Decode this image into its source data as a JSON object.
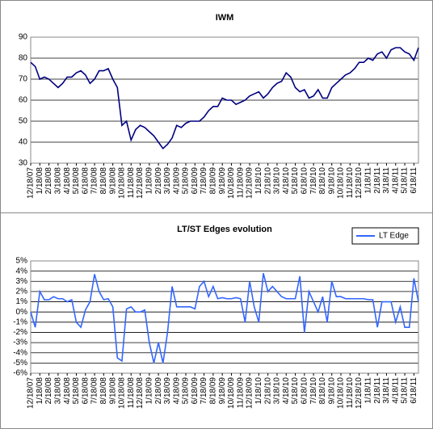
{
  "chart_data": [
    {
      "type": "line",
      "title": "IWM",
      "categories": [
        "12/18/07",
        null,
        "1/18/08",
        null,
        "2/18/08",
        null,
        "3/18/08",
        null,
        "4/18/08",
        null,
        "5/18/08",
        null,
        "6/18/08",
        null,
        "7/18/08",
        null,
        "8/18/08",
        null,
        "9/18/08",
        null,
        "10/18/08",
        null,
        "11/18/08",
        null,
        "12/18/08",
        null,
        "1/18/09",
        null,
        "2/18/09",
        null,
        "3/18/09",
        null,
        "4/18/09",
        null,
        "5/18/09",
        null,
        "6/18/09",
        null,
        "7/18/09",
        null,
        "8/18/09",
        null,
        "9/18/09",
        null,
        "10/18/09",
        null,
        "11/18/09",
        null,
        "12/18/09",
        null,
        "1/18/10",
        null,
        "2/18/10",
        null,
        "3/18/10",
        null,
        "4/18/10",
        null,
        "5/18/10",
        null,
        "6/18/10",
        null,
        "7/18/10",
        null,
        "8/18/10",
        null,
        "9/18/10",
        null,
        "10/18/10",
        null,
        "11/18/10",
        null,
        "12/18/10",
        null,
        "1/18/11",
        null,
        "2/18/11",
        null,
        "3/18/11",
        null,
        "4/18/11",
        null,
        "5/18/11",
        null,
        "6/18/11",
        null
      ],
      "values": [
        78,
        76,
        70,
        71,
        70,
        68,
        66,
        68,
        71,
        71,
        73,
        74,
        72,
        68,
        70,
        74,
        74,
        75,
        70,
        66,
        48,
        50,
        41,
        46,
        48,
        47,
        45,
        43,
        40,
        37,
        39,
        42,
        48,
        47,
        49,
        50,
        50,
        50,
        52,
        55,
        57,
        57,
        61,
        60,
        60,
        58,
        59,
        60,
        62,
        63,
        64,
        61,
        63,
        66,
        68,
        69,
        73,
        71,
        66,
        64,
        65,
        61,
        62,
        65,
        61,
        61,
        66,
        68,
        70,
        72,
        73,
        75,
        78,
        78,
        80,
        79,
        82,
        83,
        80,
        84,
        85,
        85,
        83,
        82,
        79,
        85
      ],
      "color": "#000080",
      "ylim": [
        30,
        90
      ],
      "yticks": [
        30,
        40,
        50,
        60,
        70,
        80,
        90
      ],
      "grid": true
    },
    {
      "type": "line",
      "title": "LT/ST Edges evolution",
      "categories": [
        "12/18/07",
        null,
        "1/18/08",
        null,
        "2/18/08",
        null,
        "3/18/08",
        null,
        "4/18/08",
        null,
        "5/18/08",
        null,
        "6/18/08",
        null,
        "7/18/08",
        null,
        "8/18/08",
        null,
        "9/18/08",
        null,
        "10/18/08",
        null,
        "11/18/08",
        null,
        "12/18/08",
        null,
        "1/18/09",
        null,
        "2/18/09",
        null,
        "3/18/09",
        null,
        "4/18/09",
        null,
        "5/18/09",
        null,
        "6/18/09",
        null,
        "7/18/09",
        null,
        "8/18/09",
        null,
        "9/18/09",
        null,
        "10/18/09",
        null,
        "11/18/09",
        null,
        "12/18/09",
        null,
        "1/18/10",
        null,
        "2/18/10",
        null,
        "3/18/10",
        null,
        "4/18/10",
        null,
        "5/18/10",
        null,
        "6/18/10",
        null,
        "7/18/10",
        null,
        "8/18/10",
        null,
        "9/18/10",
        null,
        "10/18/10",
        null,
        "11/18/10",
        null,
        "12/18/10",
        null,
        "1/18/11",
        null,
        "2/18/11",
        null,
        "3/18/11",
        null,
        "4/18/11",
        null,
        "5/18/11",
        null,
        "6/18/11",
        null
      ],
      "series": [
        {
          "name": "LT Edge",
          "color": "#3366ff",
          "values": [
            0,
            -1.5,
            2,
            1.2,
            1.2,
            1.5,
            1.3,
            1.3,
            1,
            1.2,
            -1,
            -1.5,
            0.2,
            1,
            3.7,
            2,
            1.2,
            1.3,
            0.5,
            -4.5,
            -4.8,
            0.3,
            0.5,
            0,
            0,
            0.2,
            -3,
            -5,
            -3,
            -5,
            -2,
            2.5,
            0.5,
            0.5,
            0.5,
            0.5,
            0.3,
            2.5,
            3,
            1.5,
            2.5,
            1.3,
            1.4,
            1.3,
            1.3,
            1.4,
            1.3,
            -1,
            3,
            0.5,
            -1,
            3.8,
            2,
            2.5,
            2,
            1.5,
            1.3,
            1.3,
            1.3,
            3.5,
            -2,
            2,
            1,
            0,
            1.5,
            -1,
            3,
            1.5,
            1.5,
            1.3,
            1.3,
            1.3,
            1.3,
            1.3,
            1.2,
            1.2,
            -1.5,
            1,
            1,
            1,
            -1,
            0.5,
            -1.5,
            -1.5,
            3.3,
            1
          ]
        }
      ],
      "ylim": [
        -6,
        5
      ],
      "yticks": [
        {
          "value": -6,
          "label": "-6%"
        },
        {
          "value": -5,
          "label": "-5%"
        },
        {
          "value": -4,
          "label": "-4%"
        },
        {
          "value": -3,
          "label": "-3%"
        },
        {
          "value": -2,
          "label": "-2%"
        },
        {
          "value": -1,
          "label": "-1%"
        },
        {
          "value": 0,
          "label": "0%"
        },
        {
          "value": 1,
          "label": "1%"
        },
        {
          "value": 2,
          "label": "2%"
        },
        {
          "value": 3,
          "label": "3%"
        },
        {
          "value": 4,
          "label": "4%"
        },
        {
          "value": 5,
          "label": "5%"
        }
      ],
      "grid": true,
      "legend": "top-right"
    }
  ]
}
